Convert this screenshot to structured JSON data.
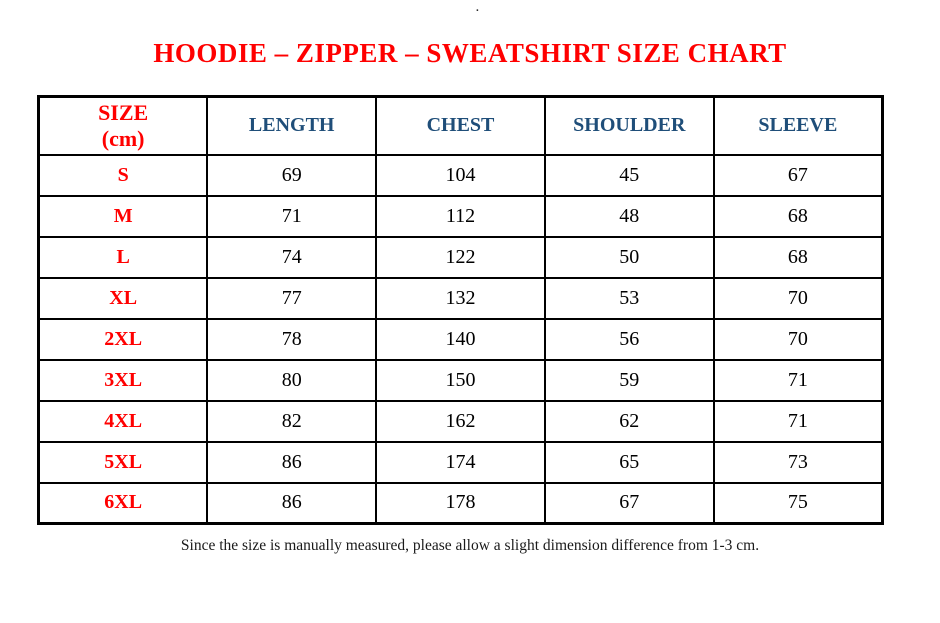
{
  "page": {
    "top_dot": ".",
    "title": "HOODIE – ZIPPER – SWEATSHIRT SIZE CHART",
    "note": "Since the size is manually measured, please allow a slight dimension difference from 1-3 cm."
  },
  "colors": {
    "title_red": "#ff0000",
    "size_label_red": "#ff0000",
    "header_blue": "#1f4e79",
    "body_text": "#000000",
    "border": "#000000",
    "background": "#ffffff"
  },
  "table": {
    "header": {
      "size_line1": "SIZE",
      "size_line2": "(cm)",
      "measures": [
        "LENGTH",
        "CHEST",
        "SHOULDER",
        "SLEEVE"
      ]
    },
    "rows": [
      {
        "size": "S",
        "values": [
          "69",
          "104",
          "45",
          "67"
        ]
      },
      {
        "size": "M",
        "values": [
          "71",
          "112",
          "48",
          "68"
        ]
      },
      {
        "size": "L",
        "values": [
          "74",
          "122",
          "50",
          "68"
        ]
      },
      {
        "size": "XL",
        "values": [
          "77",
          "132",
          "53",
          "70"
        ]
      },
      {
        "size": "2XL",
        "values": [
          "78",
          "140",
          "56",
          "70"
        ]
      },
      {
        "size": "3XL",
        "values": [
          "80",
          "150",
          "59",
          "71"
        ]
      },
      {
        "size": "4XL",
        "values": [
          "82",
          "162",
          "62",
          "71"
        ]
      },
      {
        "size": "5XL",
        "values": [
          "86",
          "174",
          "65",
          "73"
        ]
      },
      {
        "size": "6XL",
        "values": [
          "86",
          "178",
          "67",
          "75"
        ]
      }
    ]
  }
}
